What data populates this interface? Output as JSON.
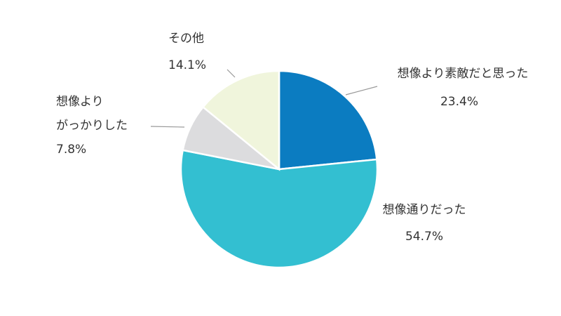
{
  "chart_data": {
    "type": "pie",
    "categories": [
      "想像より素敵だと思った",
      "想像通りだった",
      "想像より\nがっかりした",
      "その他"
    ],
    "values": [
      23.4,
      54.7,
      7.8,
      14.1
    ],
    "value_labels": [
      "23.4%",
      "54.7%",
      "7.8%",
      "14.1%"
    ],
    "colors": [
      "#0b7cc1",
      "#33bfd1",
      "#dcdcde",
      "#f0f5dc"
    ]
  }
}
